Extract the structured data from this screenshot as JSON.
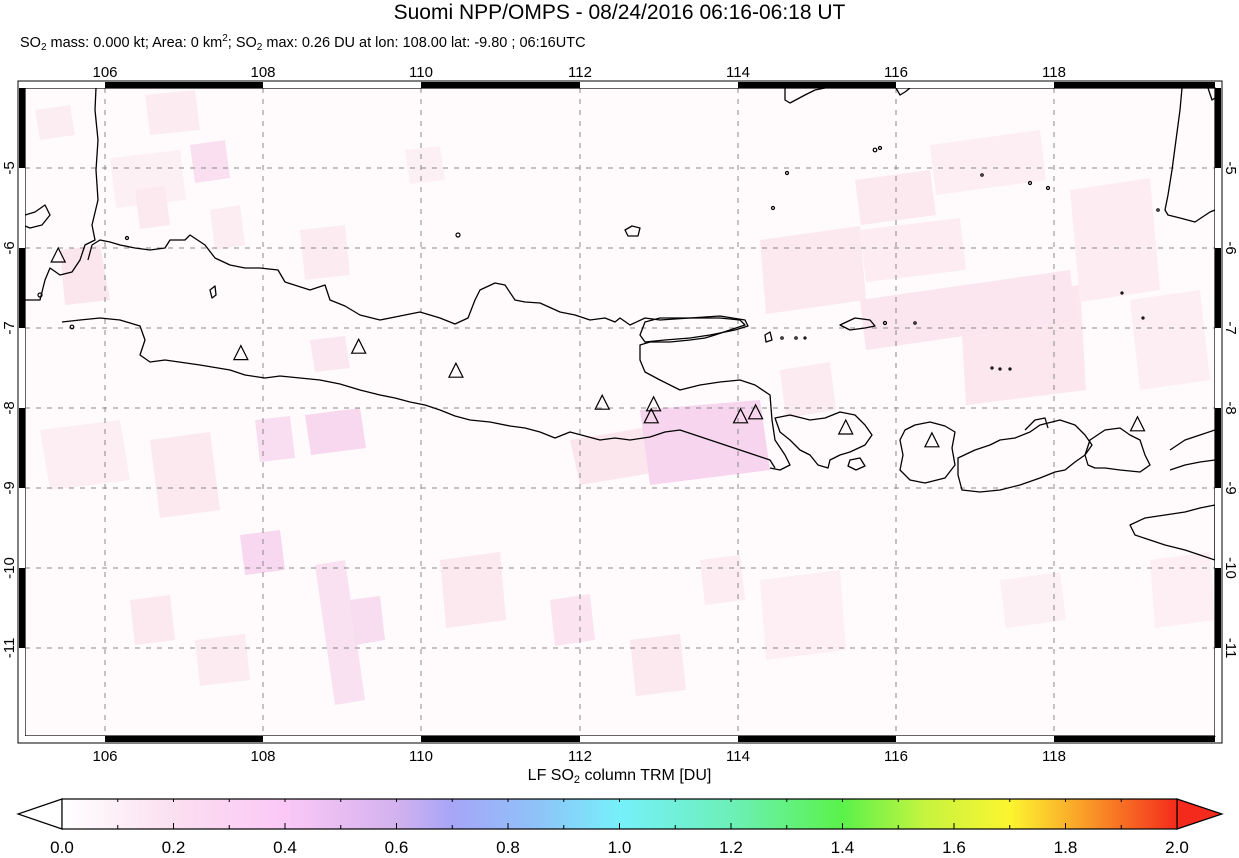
{
  "header": {
    "title": "Suomi NPP/OMPS - 08/24/2016 06:16-06:18 UT",
    "subtitle_parts": {
      "so2_a": "SO",
      "sub_a": "2",
      "mass": " mass: 0.000 kt; Area: 0 km",
      "sup": "2",
      "sep": "; SO",
      "sub_b": "2",
      "rest": " max: 0.26 DU at lon: 108.00 lat: -9.80 ; 06:16UTC"
    }
  },
  "map": {
    "lon_ticks": [
      "106",
      "108",
      "110",
      "112",
      "114",
      "116",
      "118"
    ],
    "lat_ticks": [
      "-5",
      "-6",
      "-7",
      "-8",
      "-9",
      "-10",
      "-11"
    ],
    "extent": {
      "lon_min": 105.0,
      "lon_max": 120.05,
      "lat_max": -4.0,
      "lat_min": -12.1
    },
    "volcano_marker": "triangle-outline",
    "volcanoes": [
      {
        "lon": 105.42,
        "lat": -6.1
      },
      {
        "lon": 107.73,
        "lat": -7.32
      },
      {
        "lon": 109.22,
        "lat": -7.24
      },
      {
        "lon": 110.45,
        "lat": -7.54
      },
      {
        "lon": 112.3,
        "lat": -7.94
      },
      {
        "lon": 112.95,
        "lat": -7.96
      },
      {
        "lon": 112.92,
        "lat": -8.11
      },
      {
        "lon": 114.05,
        "lat": -8.11
      },
      {
        "lon": 114.24,
        "lat": -8.06
      },
      {
        "lon": 115.38,
        "lat": -8.25
      },
      {
        "lon": 116.47,
        "lat": -8.41
      },
      {
        "lon": 119.07,
        "lat": -8.21
      }
    ]
  },
  "colorbar": {
    "title_a": "LF SO",
    "title_sub": "2",
    "title_b": " column TRM [DU]",
    "min": 0.0,
    "max": 2.0,
    "labels": [
      "0.0",
      "0.2",
      "0.4",
      "0.6",
      "0.8",
      "1.0",
      "1.2",
      "1.4",
      "1.6",
      "1.8",
      "2.0"
    ],
    "stops": [
      {
        "v": 0.0,
        "color": "#ffffff"
      },
      {
        "v": 0.2,
        "color": "#fbdff0"
      },
      {
        "v": 0.4,
        "color": "#fbc8f6"
      },
      {
        "v": 0.6,
        "color": "#d3b2ee"
      },
      {
        "v": 0.7,
        "color": "#a7a5f7"
      },
      {
        "v": 0.85,
        "color": "#8fc2f8"
      },
      {
        "v": 1.0,
        "color": "#76f0fa"
      },
      {
        "v": 1.2,
        "color": "#6cf0b8"
      },
      {
        "v": 1.4,
        "color": "#5af24a"
      },
      {
        "v": 1.55,
        "color": "#c6f43f"
      },
      {
        "v": 1.7,
        "color": "#fcf52f"
      },
      {
        "v": 1.8,
        "color": "#fbb42b"
      },
      {
        "v": 2.0,
        "color": "#f42b1c"
      }
    ],
    "under_color": "#ffffff",
    "over_color": "#f42b1c"
  }
}
